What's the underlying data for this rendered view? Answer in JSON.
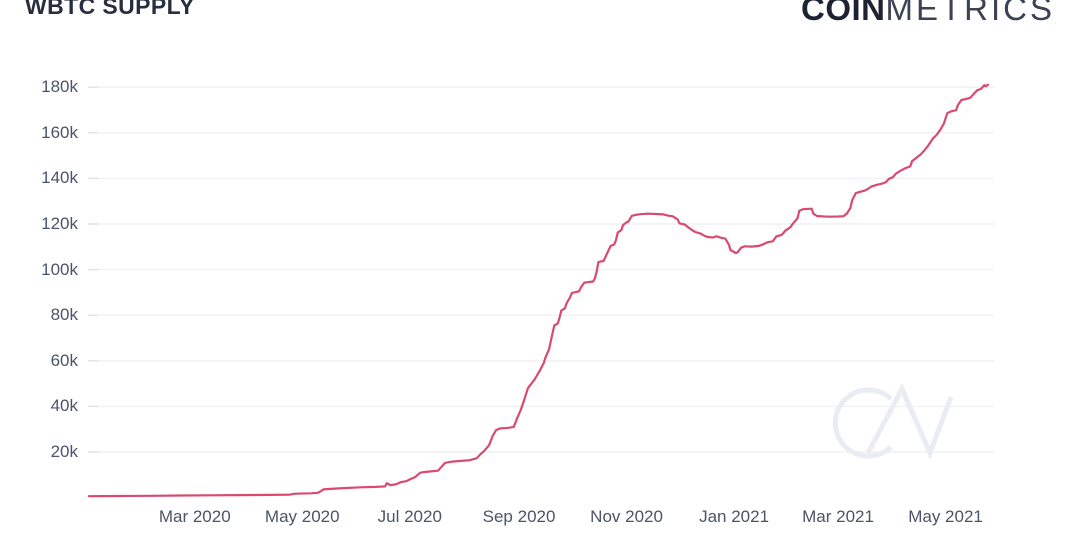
{
  "header": {
    "title": "WBTC SUPPLY",
    "logo": {
      "bold": "COIN",
      "light": "METRICS"
    }
  },
  "watermark": "CM",
  "colors": {
    "background": "#ffffff",
    "line": "#d94a6e",
    "grid": "#f0f1f4",
    "tick_stub": "#e0e2e8",
    "axis_label": "#4b5468",
    "title": "#272e40",
    "logo_bold": "#1d2333",
    "logo_light": "#3a4253",
    "watermark": "#e9ecf3"
  },
  "chart_data": {
    "type": "line",
    "title": "WBTC SUPPLY",
    "series_name": "WBTC supply",
    "x_unit": "days since 2020-01-01",
    "y_unit": "WBTC tokens",
    "values_in": "thousands",
    "grid": "horizontal-only",
    "legend": "none",
    "ylim_thousands": [
      0,
      190
    ],
    "y_ticks": [
      {
        "value": 20,
        "label": "20k"
      },
      {
        "value": 40,
        "label": "40k"
      },
      {
        "value": 60,
        "label": "60k"
      },
      {
        "value": 80,
        "label": "80k"
      },
      {
        "value": 100,
        "label": "100k"
      },
      {
        "value": 120,
        "label": "120k"
      },
      {
        "value": 140,
        "label": "140k"
      },
      {
        "value": 160,
        "label": "160k"
      },
      {
        "value": 180,
        "label": "180k"
      }
    ],
    "x_ticks": [
      {
        "day": 60,
        "label": "Mar 2020"
      },
      {
        "day": 121,
        "label": "May 2020"
      },
      {
        "day": 182,
        "label": "Jul 2020"
      },
      {
        "day": 244,
        "label": "Sep 2020"
      },
      {
        "day": 305,
        "label": "Nov 2020"
      },
      {
        "day": 366,
        "label": "Jan 2021"
      },
      {
        "day": 425,
        "label": "Mar 2021"
      },
      {
        "day": 486,
        "label": "May 2021"
      }
    ],
    "points": [
      [
        0,
        0.6
      ],
      [
        18,
        0.7
      ],
      [
        35,
        0.8
      ],
      [
        52,
        0.9
      ],
      [
        69,
        1.0
      ],
      [
        86,
        1.1
      ],
      [
        103,
        1.2
      ],
      [
        114,
        1.3
      ],
      [
        117,
        1.7
      ],
      [
        126,
        1.9
      ],
      [
        130,
        2.1
      ],
      [
        133,
        3.6
      ],
      [
        137,
        3.8
      ],
      [
        146,
        4.2
      ],
      [
        154,
        4.5
      ],
      [
        163,
        4.7
      ],
      [
        168,
        4.9
      ],
      [
        169,
        6.3
      ],
      [
        171,
        5.5
      ],
      [
        174,
        5.8
      ],
      [
        177,
        6.8
      ],
      [
        180,
        7.2
      ],
      [
        182,
        8.0
      ],
      [
        185,
        9.0
      ],
      [
        188,
        10.9
      ],
      [
        190,
        11.2
      ],
      [
        194,
        11.5
      ],
      [
        198,
        11.8
      ],
      [
        200,
        13.5
      ],
      [
        202,
        15.2
      ],
      [
        206,
        15.8
      ],
      [
        211,
        16.1
      ],
      [
        216,
        16.4
      ],
      [
        220,
        17.3
      ],
      [
        222,
        19.0
      ],
      [
        224,
        20.3
      ],
      [
        227,
        23.0
      ],
      [
        229,
        27.0
      ],
      [
        231,
        29.6
      ],
      [
        233,
        30.3
      ],
      [
        238,
        30.6
      ],
      [
        241,
        31.0
      ],
      [
        243,
        35.0
      ],
      [
        245,
        38.5
      ],
      [
        247,
        43.0
      ],
      [
        249,
        48.0
      ],
      [
        253,
        52.0
      ],
      [
        256,
        56.0
      ],
      [
        258,
        59.0
      ],
      [
        259,
        61.5
      ],
      [
        261,
        65.0
      ],
      [
        263,
        72.0
      ],
      [
        264,
        75.5
      ],
      [
        266,
        76.4
      ],
      [
        267,
        79.0
      ],
      [
        268,
        82.0
      ],
      [
        270,
        83.0
      ],
      [
        271,
        85.2
      ],
      [
        273,
        88.0
      ],
      [
        274,
        89.8
      ],
      [
        278,
        90.5
      ],
      [
        279,
        92.0
      ],
      [
        281,
        94.3
      ],
      [
        286,
        94.8
      ],
      [
        287,
        96.0
      ],
      [
        288,
        99.0
      ],
      [
        289,
        103.3
      ],
      [
        292,
        103.8
      ],
      [
        293,
        105.5
      ],
      [
        295,
        108.8
      ],
      [
        296,
        110.4
      ],
      [
        298,
        111.0
      ],
      [
        299,
        113.0
      ],
      [
        300,
        116.3
      ],
      [
        302,
        117.3
      ],
      [
        303,
        119.5
      ],
      [
        305,
        120.8
      ],
      [
        306,
        121.0
      ],
      [
        308,
        123.6
      ],
      [
        310,
        124.0
      ],
      [
        313,
        124.3
      ],
      [
        317,
        124.5
      ],
      [
        322,
        124.4
      ],
      [
        326,
        124.2
      ],
      [
        329,
        123.6
      ],
      [
        331,
        123.4
      ],
      [
        334,
        122.0
      ],
      [
        335,
        120.3
      ],
      [
        338,
        119.8
      ],
      [
        340,
        118.5
      ],
      [
        342,
        117.4
      ],
      [
        344,
        116.5
      ],
      [
        347,
        115.8
      ],
      [
        349,
        114.9
      ],
      [
        351,
        114.3
      ],
      [
        354,
        114.1
      ],
      [
        356,
        114.6
      ],
      [
        359,
        113.9
      ],
      [
        361,
        113.6
      ],
      [
        363,
        111.0
      ],
      [
        364,
        108.6
      ],
      [
        367,
        107.3
      ],
      [
        368,
        107.6
      ],
      [
        370,
        109.6
      ],
      [
        372,
        110.2
      ],
      [
        376,
        110.1
      ],
      [
        380,
        110.4
      ],
      [
        382,
        110.9
      ],
      [
        385,
        112.0
      ],
      [
        388,
        112.4
      ],
      [
        390,
        114.6
      ],
      [
        393,
        115.2
      ],
      [
        395,
        117.0
      ],
      [
        398,
        118.6
      ],
      [
        399,
        119.8
      ],
      [
        402,
        122.5
      ],
      [
        403,
        125.8
      ],
      [
        405,
        126.5
      ],
      [
        410,
        126.7
      ],
      [
        411,
        124.5
      ],
      [
        413,
        123.5
      ],
      [
        417,
        123.3
      ],
      [
        421,
        123.2
      ],
      [
        425,
        123.3
      ],
      [
        428,
        123.4
      ],
      [
        430,
        124.6
      ],
      [
        432,
        127.0
      ],
      [
        433,
        130.5
      ],
      [
        435,
        133.5
      ],
      [
        437,
        134.0
      ],
      [
        440,
        134.6
      ],
      [
        442,
        135.4
      ],
      [
        444,
        136.5
      ],
      [
        447,
        137.2
      ],
      [
        450,
        137.7
      ],
      [
        452,
        138.3
      ],
      [
        454,
        139.9
      ],
      [
        456,
        140.5
      ],
      [
        458,
        142.2
      ],
      [
        461,
        143.6
      ],
      [
        463,
        144.4
      ],
      [
        466,
        145.3
      ],
      [
        467,
        147.6
      ],
      [
        470,
        149.4
      ],
      [
        472,
        150.6
      ],
      [
        474,
        152.3
      ],
      [
        476,
        154.2
      ],
      [
        479,
        157.6
      ],
      [
        481,
        159.2
      ],
      [
        483,
        161.3
      ],
      [
        485,
        164.0
      ],
      [
        487,
        168.6
      ],
      [
        489,
        169.4
      ],
      [
        492,
        169.9
      ],
      [
        493,
        172.2
      ],
      [
        495,
        174.4
      ],
      [
        498,
        174.9
      ],
      [
        500,
        175.4
      ],
      [
        502,
        177.1
      ],
      [
        504,
        178.7
      ],
      [
        506,
        179.2
      ],
      [
        508,
        180.9
      ],
      [
        509,
        180.4
      ],
      [
        510,
        181.1
      ]
    ]
  }
}
